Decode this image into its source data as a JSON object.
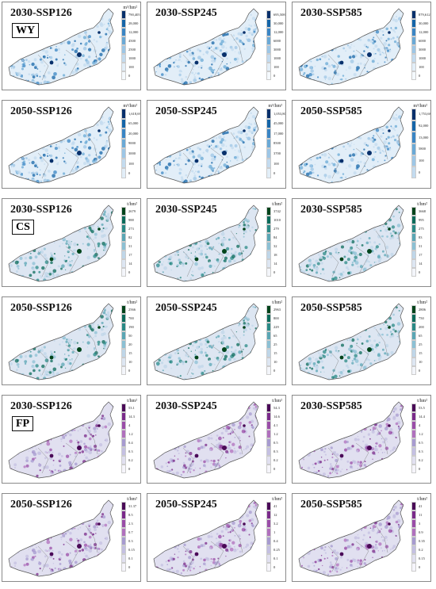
{
  "panels": [
    {
      "title": "2030-SSP126",
      "tag": "WY",
      "unit": "m³/hm²",
      "labels": [
        "790,405",
        "28,000",
        "12,000",
        "4500",
        "2500",
        "1000",
        "100",
        "0"
      ],
      "colors": [
        "#08306b",
        "#1565a8",
        "#3a85c4",
        "#6aa9d6",
        "#9dc6e6",
        "#c3dbef",
        "#e2eef8",
        "#f4f9fd"
      ]
    },
    {
      "title": "2030-SSP245",
      "tag": "",
      "unit": "",
      "labels": [
        "695,508",
        "30,000",
        "12,000",
        "6000",
        "3000",
        "1000",
        "100",
        "0"
      ],
      "colors": [
        "#08306b",
        "#1565a8",
        "#3a85c4",
        "#6aa9d6",
        "#9dc6e6",
        "#c3dbef",
        "#e2eef8",
        "#f4f9fd"
      ]
    },
    {
      "title": "2030-SSP585",
      "tag": "",
      "unit": "",
      "labels": [
        "879,612",
        "30,000",
        "12,000",
        "6000",
        "3000",
        "1000",
        "100",
        "0"
      ],
      "colors": [
        "#08306b",
        "#1565a8",
        "#3a85c4",
        "#6aa9d6",
        "#9dc6e6",
        "#c3dbef",
        "#e2eef8",
        "#f4f9fd"
      ]
    },
    {
      "title": "2050-SSP126",
      "tag": "",
      "unit": "m³/hm²",
      "labels": [
        "1,618,696",
        "65,000",
        "20,000",
        "9000",
        "3000",
        "100",
        "0"
      ],
      "colors": [
        "#08306b",
        "#1565a8",
        "#3a85c4",
        "#6aa9d6",
        "#9dc6e6",
        "#c3dbef",
        "#e2eef8",
        "#f4f9fd"
      ]
    },
    {
      "title": "2050-SSP245",
      "tag": "",
      "unit": "m³/hm²",
      "labels": [
        "1,053,800",
        "45,000",
        "17,000",
        "8500",
        "3700",
        "100",
        "0"
      ],
      "colors": [
        "#08306b",
        "#1565a8",
        "#3a85c4",
        "#6aa9d6",
        "#9dc6e6",
        "#c3dbef",
        "#e2eef8",
        "#f4f9fd"
      ]
    },
    {
      "title": "2050-SSP585",
      "tag": "",
      "unit": "m³/hm²",
      "labels": [
        "1,753,683",
        "92,000",
        "13,000",
        "5800",
        "100",
        "0"
      ],
      "colors": [
        "#08306b",
        "#1565a8",
        "#3a85c4",
        "#6aa9d6",
        "#9dc6e6",
        "#c3dbef",
        "#e2eef8",
        "#f4f9fd"
      ]
    },
    {
      "title": "2030-SSP126",
      "tag": "CS",
      "unit": "t/hm²",
      "labels": [
        "2679",
        "988",
        "273",
        "82",
        "31",
        "17",
        "14",
        "0"
      ],
      "colors": [
        "#00441b",
        "#0b6b5a",
        "#2a8a86",
        "#5aa6b4",
        "#8cc0d4",
        "#bfd6e8",
        "#dde6f2",
        "#f3f5fa"
      ]
    },
    {
      "title": "2030-SSP245",
      "tag": "",
      "unit": "t/hm²",
      "labels": [
        "3742",
        "1010",
        "279",
        "84",
        "32",
        "18",
        "14",
        "0"
      ],
      "colors": [
        "#00441b",
        "#0b6b5a",
        "#2a8a86",
        "#5aa6b4",
        "#8cc0d4",
        "#bfd6e8",
        "#dde6f2",
        "#f3f5fa"
      ]
    },
    {
      "title": "2030-SSP585",
      "tag": "",
      "unit": "t/hm²",
      "labels": [
        "3668",
        "995",
        "275",
        "83",
        "31",
        "17",
        "14",
        "0"
      ],
      "colors": [
        "#00441b",
        "#0b6b5a",
        "#2a8a86",
        "#5aa6b4",
        "#8cc0d4",
        "#bfd6e8",
        "#dde6f2",
        "#f3f5fa"
      ]
    },
    {
      "title": "2050-SSP126",
      "tag": "",
      "unit": "t/hm²",
      "labels": [
        "2566",
        "700",
        "190",
        "50",
        "20",
        "15",
        "10",
        "0"
      ],
      "colors": [
        "#00441b",
        "#0b6b5a",
        "#2a8a86",
        "#5aa6b4",
        "#8cc0d4",
        "#bfd6e8",
        "#dde6f2",
        "#f3f5fa"
      ]
    },
    {
      "title": "2050-SSP245",
      "tag": "",
      "unit": "t/hm²",
      "labels": [
        "2963",
        "800",
        "229",
        "65",
        "25",
        "15",
        "10",
        "0"
      ],
      "colors": [
        "#00441b",
        "#0b6b5a",
        "#2a8a86",
        "#5aa6b4",
        "#8cc0d4",
        "#bfd6e8",
        "#dde6f2",
        "#f3f5fa"
      ]
    },
    {
      "title": "2050-SSP585",
      "tag": "",
      "unit": "t/hm²",
      "labels": [
        "2806",
        "750",
        "200",
        "65",
        "25",
        "15",
        "10",
        "0"
      ],
      "colors": [
        "#00441b",
        "#0b6b5a",
        "#2a8a86",
        "#5aa6b4",
        "#8cc0d4",
        "#bfd6e8",
        "#dde6f2",
        "#f3f5fa"
      ]
    },
    {
      "title": "2030-SSP126",
      "tag": "FP",
      "unit": "t/hm²",
      "labels": [
        "53.1",
        "14.3",
        "4",
        "1.2",
        "0.4",
        "0.3",
        "0.2",
        "0"
      ],
      "colors": [
        "#4a0a57",
        "#7a2a8a",
        "#9a4da8",
        "#b070bd",
        "#a79bd0",
        "#c4c0e2",
        "#e1e0f0",
        "#f6f5fb"
      ]
    },
    {
      "title": "2030-SSP245",
      "tag": "",
      "unit": "t/hm²",
      "labels": [
        "54.3",
        "14.6",
        "4.1",
        "1.2",
        "0.5",
        "0.3",
        "0.2",
        "0"
      ],
      "colors": [
        "#4a0a57",
        "#7a2a8a",
        "#9a4da8",
        "#b070bd",
        "#a79bd0",
        "#c4c0e2",
        "#e1e0f0",
        "#f6f5fb"
      ]
    },
    {
      "title": "2030-SSP585",
      "tag": "",
      "unit": "t/hm²",
      "labels": [
        "53.5",
        "14.4",
        "4",
        "1.2",
        "0.5",
        "0.3",
        "0.2",
        "0"
      ],
      "colors": [
        "#4a0a57",
        "#7a2a8a",
        "#9a4da8",
        "#b070bd",
        "#a79bd0",
        "#c4c0e2",
        "#e1e0f0",
        "#f6f5fb"
      ]
    },
    {
      "title": "2050-SSP126",
      "tag": "",
      "unit": "t/hm²",
      "labels": [
        "31.37",
        "8.5",
        "2.3",
        "0.7",
        "0.3",
        "0.15",
        "0.1",
        "0"
      ],
      "colors": [
        "#4a0a57",
        "#7a2a8a",
        "#9a4da8",
        "#b070bd",
        "#a79bd0",
        "#c4c0e2",
        "#e1e0f0",
        "#f6f5fb"
      ]
    },
    {
      "title": "2050-SSP245",
      "tag": "",
      "unit": "t/hm²",
      "labels": [
        "41",
        "12",
        "3.2",
        "1",
        "0.4",
        "0.25",
        "0.1",
        "0"
      ],
      "colors": [
        "#4a0a57",
        "#7a2a8a",
        "#9a4da8",
        "#b070bd",
        "#a79bd0",
        "#c4c0e2",
        "#e1e0f0",
        "#f6f5fb"
      ]
    },
    {
      "title": "2050-SSP585",
      "tag": "",
      "unit": "t/hm²",
      "labels": [
        "41",
        "11",
        "3",
        "0.9",
        "0.35",
        "0.2",
        "0.15",
        "0"
      ],
      "colors": [
        "#4a0a57",
        "#7a2a8a",
        "#9a4da8",
        "#b070bd",
        "#a79bd0",
        "#c4c0e2",
        "#e1e0f0",
        "#f6f5fb"
      ]
    }
  ]
}
